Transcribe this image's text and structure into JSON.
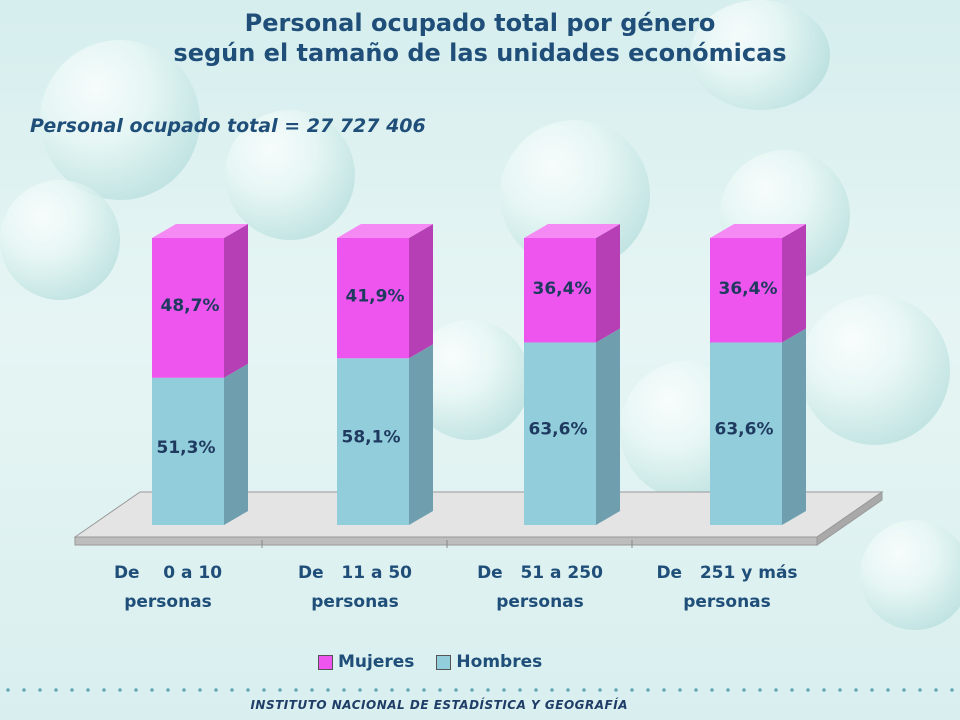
{
  "title_line1": "Personal ocupado total por género",
  "title_line2": "según el tamaño de las unidades económicas",
  "subtitle": "Personal ocupado total = 27  727 406",
  "footer": "INSTITUTO NACIONAL DE ESTADÍSTICA Y GEOGRAFÍA",
  "colors": {
    "mujeres": "#ee55ee",
    "hombres": "#92cddc",
    "title": "#1f4e79"
  },
  "chart_data": {
    "type": "bar",
    "stacked": true,
    "categories": [
      [
        "De    0 a 10",
        "personas"
      ],
      [
        "De   11 a 50",
        "personas"
      ],
      [
        "De   51 a 250",
        "personas"
      ],
      [
        "De   251 y más",
        "personas"
      ]
    ],
    "series": [
      {
        "name": "Hombres",
        "values": [
          51.3,
          58.1,
          63.6,
          63.6
        ],
        "labels": [
          "51,3%",
          "58,1%",
          "63,6%",
          "63,6%"
        ]
      },
      {
        "name": "Mujeres",
        "values": [
          48.7,
          41.9,
          36.4,
          36.4
        ],
        "labels": [
          "48,7%",
          "41,9%",
          "36,4%",
          "36,4%"
        ]
      }
    ],
    "ylim": [
      0,
      100
    ],
    "legend": [
      "Mujeres",
      "Hombres"
    ],
    "legend_position": "bottom",
    "grid": false
  }
}
